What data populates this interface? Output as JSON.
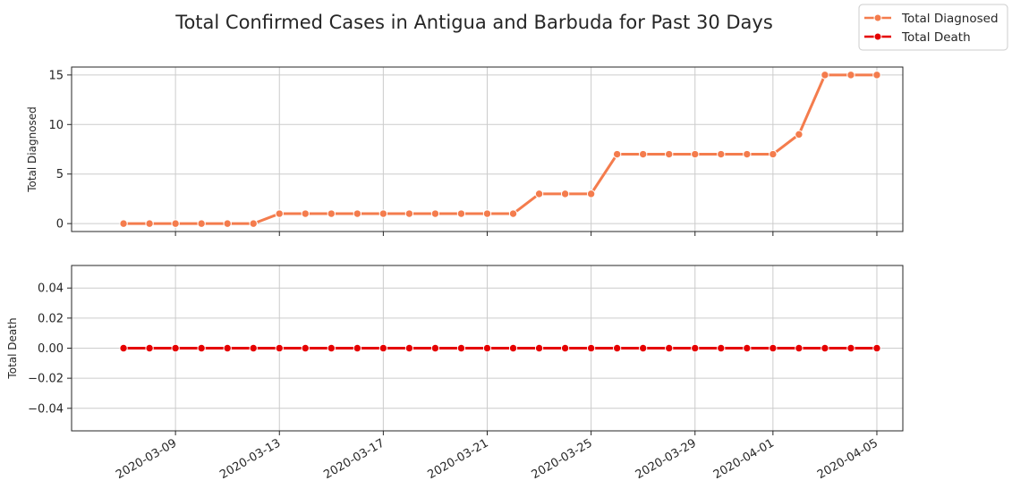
{
  "chart_data": {
    "type": "line",
    "title": "Total Confirmed Cases in Antigua and Barbuda for Past 30 Days",
    "x": [
      "2020-03-07",
      "2020-03-08",
      "2020-03-09",
      "2020-03-10",
      "2020-03-11",
      "2020-03-12",
      "2020-03-13",
      "2020-03-14",
      "2020-03-15",
      "2020-03-16",
      "2020-03-17",
      "2020-03-18",
      "2020-03-19",
      "2020-03-20",
      "2020-03-21",
      "2020-03-22",
      "2020-03-23",
      "2020-03-24",
      "2020-03-25",
      "2020-03-26",
      "2020-03-27",
      "2020-03-28",
      "2020-03-29",
      "2020-03-30",
      "2020-03-31",
      "2020-04-01",
      "2020-04-02",
      "2020-04-03",
      "2020-04-04",
      "2020-04-05"
    ],
    "xticks": [
      "2020-03-09",
      "2020-03-13",
      "2020-03-17",
      "2020-03-21",
      "2020-03-25",
      "2020-03-29",
      "2020-04-01",
      "2020-04-05"
    ],
    "xlim": [
      "2020-03-05",
      "2020-04-06"
    ],
    "grid": true,
    "legend_position": "top-right",
    "legend": [
      {
        "name": "Total Diagnosed",
        "color": "#f47c4d"
      },
      {
        "name": "Total Death",
        "color": "#e50000"
      }
    ],
    "panels": [
      {
        "ylabel": "Total Diagnosed",
        "series": {
          "name": "Total Diagnosed",
          "color": "#f47c4d",
          "values": [
            0,
            0,
            0,
            0,
            0,
            0,
            1,
            1,
            1,
            1,
            1,
            1,
            1,
            1,
            1,
            1,
            3,
            3,
            3,
            7,
            7,
            7,
            7,
            7,
            7,
            7,
            9,
            15,
            15,
            15
          ]
        },
        "ylim": [
          -0.8,
          15.8
        ],
        "yticks": [
          0,
          5,
          10,
          15
        ],
        "yticklabels": [
          "0",
          "5",
          "10",
          "15"
        ]
      },
      {
        "ylabel": "Total Death",
        "series": {
          "name": "Total Death",
          "color": "#e50000",
          "values": [
            0,
            0,
            0,
            0,
            0,
            0,
            0,
            0,
            0,
            0,
            0,
            0,
            0,
            0,
            0,
            0,
            0,
            0,
            0,
            0,
            0,
            0,
            0,
            0,
            0,
            0,
            0,
            0,
            0,
            0
          ]
        },
        "ylim": [
          -0.055,
          0.055
        ],
        "yticks": [
          -0.04,
          -0.02,
          0,
          0.02,
          0.04
        ],
        "yticklabels": [
          "−0.04",
          "−0.02",
          "0.00",
          "0.02",
          "0.04"
        ]
      }
    ]
  }
}
